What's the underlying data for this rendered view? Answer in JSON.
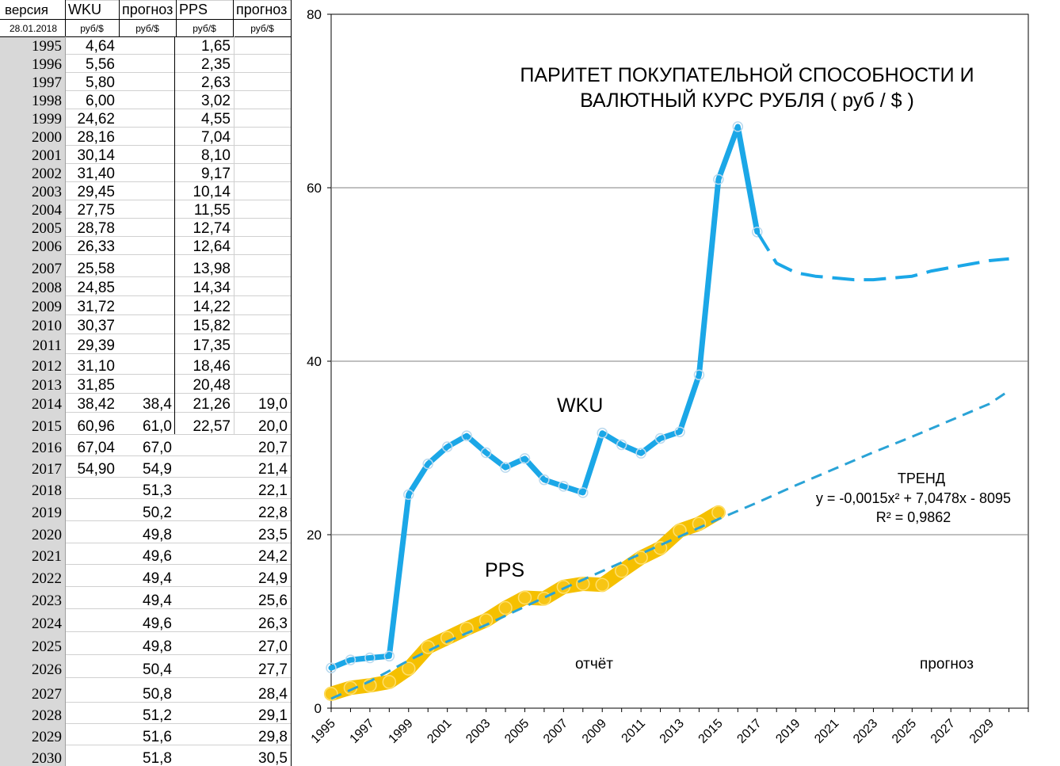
{
  "table": {
    "headers": [
      "версия",
      "WKU",
      "прогноз",
      "PPS",
      "прогноз"
    ],
    "subheaders": [
      "28.01.2018",
      "руб/$",
      "руб/$",
      "руб/$",
      "руб/$"
    ],
    "rows": [
      [
        "1995",
        "4,64",
        "",
        "1,65",
        ""
      ],
      [
        "1996",
        "5,56",
        "",
        "2,35",
        ""
      ],
      [
        "1997",
        "5,80",
        "",
        "2,63",
        ""
      ],
      [
        "1998",
        "6,00",
        "",
        "3,02",
        ""
      ],
      [
        "1999",
        "24,62",
        "",
        "4,55",
        ""
      ],
      [
        "2000",
        "28,16",
        "",
        "7,04",
        ""
      ],
      [
        "2001",
        "30,14",
        "",
        "8,10",
        ""
      ],
      [
        "2002",
        "31,40",
        "",
        "9,17",
        ""
      ],
      [
        "2003",
        "29,45",
        "",
        "10,14",
        ""
      ],
      [
        "2004",
        "27,75",
        "",
        "11,55",
        ""
      ],
      [
        "2005",
        "28,78",
        "",
        "12,74",
        ""
      ],
      [
        "2006",
        "26,33",
        "",
        "12,64",
        ""
      ],
      [
        "2007",
        "25,58",
        "",
        "13,98",
        ""
      ],
      [
        "2008",
        "24,85",
        "",
        "14,34",
        ""
      ],
      [
        "2009",
        "31,72",
        "",
        "14,22",
        ""
      ],
      [
        "2010",
        "30,37",
        "",
        "15,82",
        ""
      ],
      [
        "2011",
        "29,39",
        "",
        "17,35",
        ""
      ],
      [
        "2012",
        "31,10",
        "",
        "18,46",
        ""
      ],
      [
        "2013",
        "31,85",
        "",
        "20,48",
        ""
      ],
      [
        "2014",
        "38,42",
        "38,4",
        "21,26",
        "19,0"
      ],
      [
        "2015",
        "60,96",
        "61,0",
        "22,57",
        "20,0"
      ],
      [
        "2016",
        "67,04",
        "67,0",
        "",
        "20,7"
      ],
      [
        "2017",
        "54,90",
        "54,9",
        "",
        "21,4"
      ],
      [
        "2018",
        "",
        "51,3",
        "",
        "22,1"
      ],
      [
        "2019",
        "",
        "50,2",
        "",
        "22,8"
      ],
      [
        "2020",
        "",
        "49,8",
        "",
        "23,5"
      ],
      [
        "2021",
        "",
        "49,6",
        "",
        "24,2"
      ],
      [
        "2022",
        "",
        "49,4",
        "",
        "24,9"
      ],
      [
        "2023",
        "",
        "49,4",
        "",
        "25,6"
      ],
      [
        "2024",
        "",
        "49,6",
        "",
        "26,3"
      ],
      [
        "2025",
        "",
        "49,8",
        "",
        "27,0"
      ],
      [
        "2026",
        "",
        "50,4",
        "",
        "27,7"
      ],
      [
        "2027",
        "",
        "50,8",
        "",
        "28,4"
      ],
      [
        "2028",
        "",
        "51,2",
        "",
        "29,1"
      ],
      [
        "2029",
        "",
        "51,6",
        "",
        "29,8"
      ],
      [
        "2030",
        "",
        "51,8",
        "",
        "30,5"
      ]
    ]
  },
  "chart_data": {
    "type": "line",
    "title": "ПАРИТЕТ  ПОКУПАТЕЛЬНОЙ  СПОСОБНОСТИ  И ВАЛЮТНЫЙ КУРС РУБЛЯ    ( руб / $ )",
    "title_lines": [
      "ПАРИТЕТ  ПОКУПАТЕЛЬНОЙ  СПОСОБНОСТИ  И",
      "ВАЛЮТНЫЙ КУРС РУБЛЯ    ( руб / $ )"
    ],
    "xlabel": "",
    "ylabel": "",
    "ylim": [
      0,
      80
    ],
    "yticks": [
      0,
      20,
      40,
      60,
      80
    ],
    "xlim": [
      1995,
      2031
    ],
    "xticks": [
      1995,
      1997,
      1999,
      2001,
      2003,
      2005,
      2007,
      2009,
      2011,
      2013,
      2015,
      2017,
      2019,
      2021,
      2023,
      2025,
      2027,
      2029
    ],
    "grid": true,
    "series": [
      {
        "name": "WKU",
        "color": "#1ba7e7",
        "style": "solid",
        "markers": true,
        "x": [
          1995,
          1996,
          1997,
          1998,
          1999,
          2000,
          2001,
          2002,
          2003,
          2004,
          2005,
          2006,
          2007,
          2008,
          2009,
          2010,
          2011,
          2012,
          2013,
          2014,
          2015,
          2016,
          2017
        ],
        "y": [
          4.64,
          5.56,
          5.8,
          6.0,
          24.62,
          28.16,
          30.14,
          31.4,
          29.45,
          27.75,
          28.78,
          26.33,
          25.58,
          24.85,
          31.72,
          30.37,
          29.39,
          31.1,
          31.85,
          38.42,
          60.96,
          67.04,
          54.9
        ]
      },
      {
        "name": "",
        "color": "#1ba7e7",
        "style": "dashed",
        "markers": false,
        "x": [
          2017,
          2018,
          2019,
          2020,
          2021,
          2022,
          2023,
          2024,
          2025,
          2026,
          2027,
          2028,
          2029,
          2030
        ],
        "y": [
          54.9,
          51.3,
          50.2,
          49.8,
          49.6,
          49.4,
          49.4,
          49.6,
          49.8,
          50.4,
          50.8,
          51.2,
          51.6,
          51.8
        ]
      },
      {
        "name": "PPS",
        "color": "#f5c000",
        "style": "solid",
        "markers": true,
        "x": [
          1995,
          1996,
          1997,
          1998,
          1999,
          2000,
          2001,
          2002,
          2003,
          2004,
          2005,
          2006,
          2007,
          2008,
          2009,
          2010,
          2011,
          2012,
          2013,
          2014,
          2015
        ],
        "y": [
          1.65,
          2.35,
          2.63,
          3.02,
          4.55,
          7.04,
          8.1,
          9.17,
          10.14,
          11.55,
          12.74,
          12.64,
          13.98,
          14.34,
          14.22,
          15.82,
          17.35,
          18.46,
          20.48,
          21.26,
          22.57
        ]
      },
      {
        "name": "",
        "color": "#2aa3d6",
        "style": "dashed",
        "markers": false,
        "x": [
          1995,
          1997,
          1999,
          2001,
          2003,
          2005,
          2007,
          2009,
          2011,
          2013,
          2015,
          2017,
          2019,
          2021,
          2023,
          2025,
          2027,
          2029,
          2030
        ],
        "y": [
          1.1,
          3.1,
          5.5,
          7.7,
          9.6,
          11.7,
          13.8,
          15.8,
          17.8,
          19.8,
          21.8,
          23.7,
          25.7,
          27.6,
          29.5,
          31.3,
          33.2,
          35.1,
          36.6
        ]
      }
    ],
    "annotations": {
      "wku_label": "WKU",
      "pps_label": "PPS",
      "trend_title": "ТРЕНД",
      "trend_formula": "y = -0,0015x² + 7,0478x - 8095",
      "trend_r2": "R² = 0,9862",
      "report_label": "отчёт",
      "forecast_label": "прогноз"
    }
  }
}
